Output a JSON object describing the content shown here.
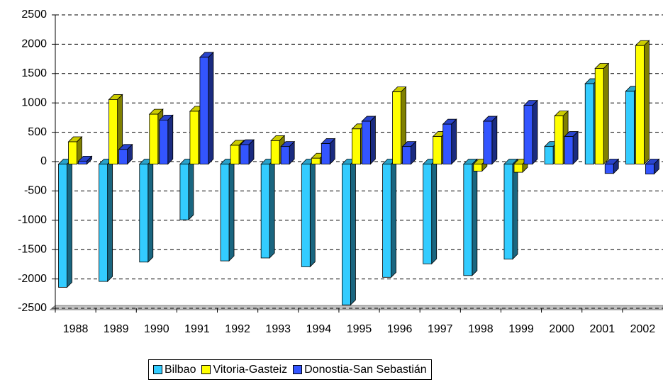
{
  "chart_data": {
    "type": "bar3d",
    "categories": [
      "1988",
      "1989",
      "1990",
      "1991",
      "1992",
      "1993",
      "1994",
      "1995",
      "1996",
      "1997",
      "1998",
      "1999",
      "2000",
      "2001",
      "2002"
    ],
    "series": [
      {
        "name": "Bilbao",
        "color": "#33ccff",
        "values": [
          -2100,
          -2000,
          -1670,
          -950,
          -1650,
          -1600,
          -1750,
          -2400,
          -1930,
          -1700,
          -1900,
          -1620,
          300,
          1370,
          1240
        ]
      },
      {
        "name": "Vitoria-Gasteiz",
        "color": "#ffff00",
        "values": [
          380,
          1100,
          850,
          900,
          320,
          400,
          100,
          600,
          1230,
          470,
          -120,
          -140,
          820,
          1630,
          2020
        ]
      },
      {
        "name": "Donostia-San Sebastián",
        "color": "#3355ff",
        "values": [
          50,
          250,
          750,
          1820,
          330,
          300,
          350,
          730,
          300,
          680,
          730,
          1000,
          470,
          -160,
          -170
        ]
      }
    ],
    "ylim": [
      -2500,
      2500
    ],
    "yticks": [
      -2500,
      -2000,
      -1500,
      -1000,
      -500,
      0,
      500,
      1000,
      1500,
      2000,
      2500
    ],
    "grid": true
  }
}
